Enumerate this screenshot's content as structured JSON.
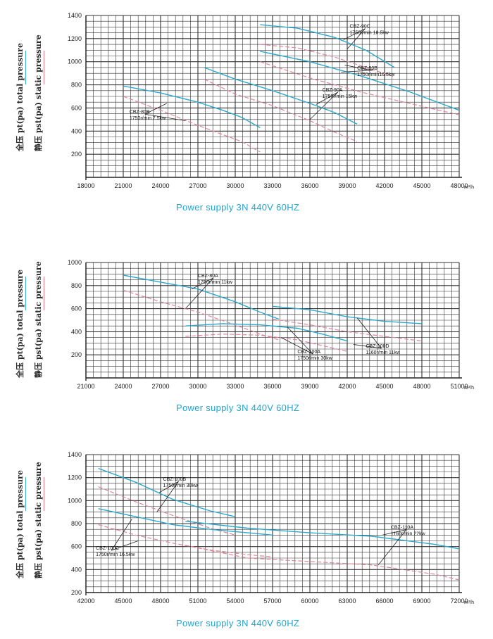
{
  "panels": [
    {
      "ylabel_total": "全压 pt(pa)  total pressure",
      "ylabel_static": "静压 pst(pa) static pressure",
      "footer": "Power supply   3N 440V  60HZ",
      "chart_data": {
        "type": "line",
        "x_unit": "m³/h",
        "xlim": [
          18000,
          48000
        ],
        "ylim": [
          0,
          1400
        ],
        "x_ticks": [
          18000,
          21000,
          24000,
          27000,
          30000,
          33000,
          36000,
          39000,
          42000,
          45000,
          48000
        ],
        "y_ticks": [
          200,
          400,
          600,
          800,
          1000,
          1200,
          1400
        ],
        "grid": true,
        "curves": [
          {
            "kind": "total",
            "x": [
              21000,
              24000,
              27000,
              29000,
              30500,
              32000
            ],
            "y": [
              790,
              730,
              650,
              580,
              520,
              430
            ]
          },
          {
            "kind": "static",
            "x": [
              21000,
              24000,
              27000,
              29000,
              30500,
              32000
            ],
            "y": [
              700,
              580,
              450,
              370,
              310,
              220
            ]
          },
          {
            "kind": "total",
            "x": [
              27500,
              30000,
              33000,
              36000,
              38000,
              39800
            ],
            "y": [
              950,
              850,
              750,
              640,
              560,
              460
            ]
          },
          {
            "kind": "static",
            "x": [
              27500,
              30000,
              33000,
              36000,
              38000,
              39800
            ],
            "y": [
              850,
              720,
              620,
              490,
              390,
              310
            ]
          },
          {
            "kind": "total",
            "x": [
              32000,
              36000,
              40000,
              44000,
              48000
            ],
            "y": [
              1090,
              1000,
              880,
              740,
              580
            ]
          },
          {
            "kind": "static",
            "x": [
              32000,
              36000,
              40000,
              44000,
              48000
            ],
            "y": [
              1000,
              860,
              740,
              640,
              540
            ]
          },
          {
            "kind": "total",
            "x": [
              32000,
              35000,
              38000,
              40500,
              42800
            ],
            "y": [
              1320,
              1290,
              1210,
              1100,
              950
            ]
          },
          {
            "kind": "static",
            "x": [
              32000,
              35000,
              38000,
              40500,
              42800
            ],
            "y": [
              1150,
              1120,
              1040,
              950,
              870
            ]
          }
        ],
        "annotations": [
          {
            "name": "CBZ-80B",
            "spec": "1750r/min 7.5kw",
            "lx": 21500,
            "ly": 510,
            "tx": [
              24500,
              26000
            ],
            "ty": [
              640,
              490
            ]
          },
          {
            "name": "CBZ-90A",
            "spec": "1750r/min 15kw",
            "lx": 37000,
            "ly": 700,
            "tx": [
              36500,
              36000
            ],
            "ty": [
              630,
              500
            ]
          },
          {
            "name": "CBZ-90B",
            "spec": "1750r/min16.5kw",
            "lx": 39800,
            "ly": 890,
            "tx": [
              38800,
              38500
            ],
            "ty": [
              970,
              910
            ]
          },
          {
            "name": "CBZ-90C",
            "spec": "1750r/min 18.5kw",
            "lx": 39200,
            "ly": 1250,
            "tx": [
              38700,
              39000
            ],
            "ty": [
              1190,
              1110
            ]
          }
        ]
      }
    },
    {
      "ylabel_total": "全压 pt(pa)  total pressure",
      "ylabel_static": "静压 pst(pa) static pressure",
      "footer": "Power supply   3N 440V  60HZ",
      "chart_data": {
        "type": "line",
        "x_unit": "m³/h",
        "xlim": [
          21000,
          51000
        ],
        "ylim": [
          0,
          1000
        ],
        "x_ticks": [
          21000,
          24000,
          27000,
          30000,
          33000,
          36000,
          39000,
          42000,
          45000,
          48000,
          51000
        ],
        "y_ticks": [
          200,
          400,
          600,
          800,
          1000
        ],
        "grid": true,
        "curves": [
          {
            "kind": "total",
            "x": [
              24000,
              27000,
              30000,
              33000,
              35000,
              36500
            ],
            "y": [
              890,
              830,
              770,
              660,
              570,
              510
            ]
          },
          {
            "kind": "static",
            "x": [
              24000,
              27000,
              30000,
              33000,
              35000,
              36500
            ],
            "y": [
              760,
              660,
              570,
              460,
              380,
              330
            ]
          },
          {
            "kind": "total",
            "x": [
              29000,
              32000,
              35000,
              38000,
              40000,
              42000
            ],
            "y": [
              450,
              470,
              460,
              430,
              380,
              320
            ]
          },
          {
            "kind": "static",
            "x": [
              29000,
              32000,
              35000,
              38000,
              40000,
              42000
            ],
            "y": [
              360,
              380,
              370,
              330,
              280,
              230
            ]
          },
          {
            "kind": "total",
            "x": [
              36000,
              39000,
              42000,
              45000,
              48000
            ],
            "y": [
              620,
              590,
              530,
              490,
              470
            ]
          },
          {
            "kind": "static",
            "x": [
              36000,
              39000,
              42000,
              45000,
              48000
            ],
            "y": [
              510,
              460,
              400,
              360,
              320
            ]
          }
        ],
        "annotations": [
          {
            "name": "CBZ-80A",
            "spec": "1750r/min 11kw",
            "lx": 30000,
            "ly": 830,
            "tx": [
              29500,
              29000
            ],
            "ty": [
              770,
              600
            ]
          },
          {
            "name": "CBZ-100A",
            "spec": "1750r/min 30kw",
            "lx": 38000,
            "ly": 170,
            "tx": [
              36700,
              37200
            ],
            "ty": [
              350,
              440
            ]
          },
          {
            "name": "CBZ-100D",
            "spec": "1160r/min 11kw",
            "lx": 43500,
            "ly": 220,
            "tx": [
              42500,
              42800
            ],
            "ty": [
              290,
              520
            ]
          }
        ]
      }
    },
    {
      "ylabel_total": "全压 pt(pa)  total pressure",
      "ylabel_static": "静压 pst(pa) static pressure",
      "footer": "Power supply   3N 440V  60HZ",
      "chart_data": {
        "type": "line",
        "x_unit": "m³/h",
        "xlim": [
          42000,
          72000
        ],
        "ylim": [
          200,
          1400
        ],
        "x_ticks": [
          42000,
          45000,
          48000,
          51000,
          54000,
          57000,
          60000,
          63000,
          66000,
          69000,
          72000
        ],
        "y_ticks": [
          200,
          400,
          600,
          800,
          1000,
          1200,
          1400
        ],
        "grid": true,
        "curves": [
          {
            "kind": "total",
            "x": [
              43000,
              46000,
              49000,
              52000,
              54000
            ],
            "y": [
              1280,
              1160,
              1010,
              910,
              860
            ]
          },
          {
            "kind": "static",
            "x": [
              43000,
              46000,
              49000,
              52000,
              54000
            ],
            "y": [
              1120,
              990,
              870,
              760,
              700
            ]
          },
          {
            "kind": "total",
            "x": [
              43000,
              46000,
              49000,
              52000,
              55000,
              57000
            ],
            "y": [
              930,
              860,
              790,
              750,
              720,
              700
            ]
          },
          {
            "kind": "static",
            "x": [
              43000,
              46000,
              49000,
              52000,
              55000,
              57000
            ],
            "y": [
              790,
              700,
              630,
              570,
              530,
              510
            ]
          },
          {
            "kind": "total",
            "x": [
              50000,
              55000,
              60000,
              65000,
              70000,
              72000
            ],
            "y": [
              820,
              760,
              720,
              690,
              620,
              580
            ]
          },
          {
            "kind": "static",
            "x": [
              50000,
              55000,
              60000,
              65000,
              70000,
              72000
            ],
            "y": [
              610,
              500,
              470,
              440,
              360,
              310
            ]
          }
        ],
        "annotations": [
          {
            "name": "CBZ-100B",
            "spec": "1750r/min 30kw",
            "lx": 48200,
            "ly": 1130,
            "tx": [
              47900,
              47700
            ],
            "ty": [
              1070,
              900
            ]
          },
          {
            "name": "CBZ-100C",
            "spec": "1750r/min 16.5kw",
            "lx": 42800,
            "ly": 530,
            "tx": [
              45700,
              46200
            ],
            "ty": [
              840,
              650
            ]
          },
          {
            "name": "CBZ-110A",
            "spec": "1160r/min 22kw",
            "lx": 66500,
            "ly": 710,
            "tx": [
              65800,
              65500
            ],
            "ty": [
              700,
              440
            ]
          }
        ]
      }
    }
  ]
}
